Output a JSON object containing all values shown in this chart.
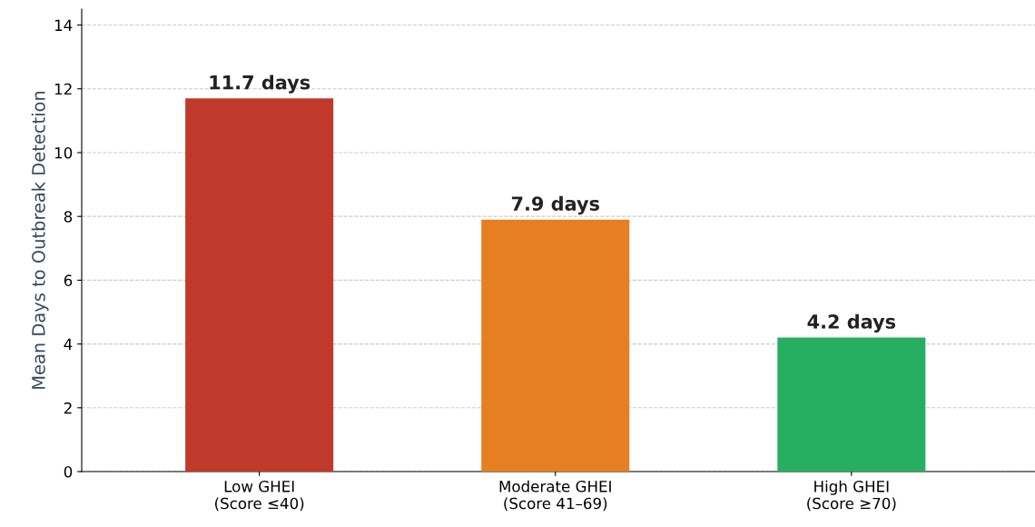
{
  "chart_data": {
    "type": "bar",
    "ylabel": "Mean Days to Outbreak Detection",
    "categories": [
      "Low GHEI\n(Score ≤40)",
      "Moderate GHEI\n(Score 41–69)",
      "High GHEI\n(Score ≥70)"
    ],
    "values": [
      11.7,
      7.9,
      4.2
    ],
    "colors": [
      "#c0392b",
      "#e67e22",
      "#27ae60"
    ],
    "value_labels": [
      "11.7 days",
      "7.9 days",
      "4.2 days"
    ],
    "ylim": [
      0,
      14.5
    ],
    "yticks": [
      0,
      2,
      4,
      6,
      8,
      10,
      12,
      14
    ],
    "grid": "y"
  }
}
